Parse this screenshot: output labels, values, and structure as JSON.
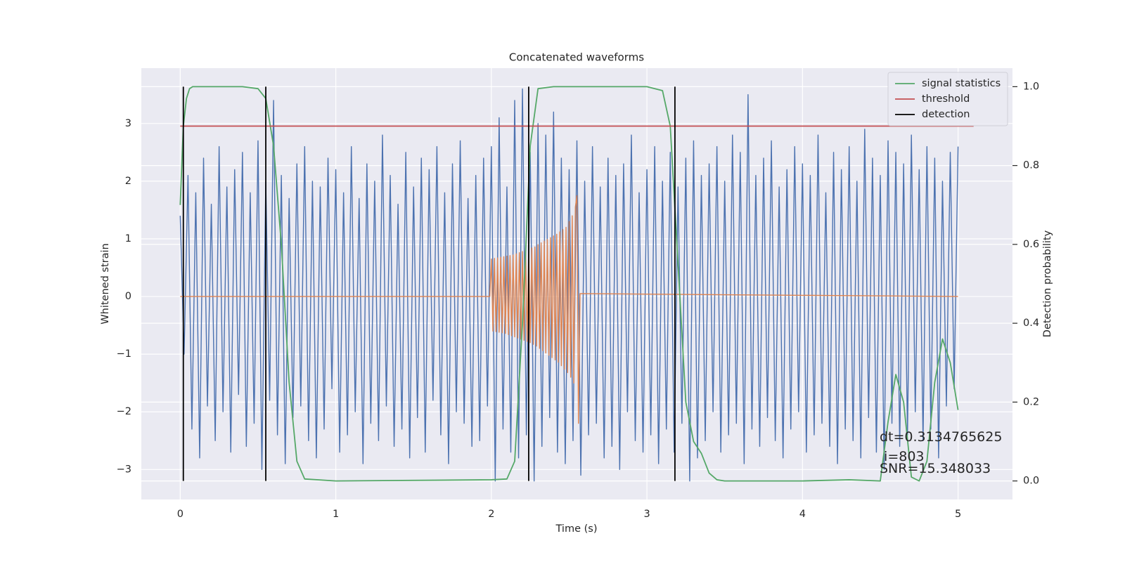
{
  "chart_data": {
    "type": "line",
    "title": "Concatenated waveforms",
    "xlabel": "Time (s)",
    "ylabel": "Whitened strain",
    "y2label": "Detection probability",
    "xlim": [
      -0.25,
      5.35
    ],
    "ylim": [
      -3.52,
      3.96
    ],
    "y2lim": [
      -0.047,
      1.047
    ],
    "xticks": [
      0,
      1,
      2,
      3,
      4,
      5
    ],
    "yticks": [
      {
        "value": -3,
        "label": "−3"
      },
      {
        "value": -2,
        "label": "−2"
      },
      {
        "value": -1,
        "label": "−1"
      },
      0,
      1,
      2,
      3
    ],
    "y2ticks": [
      {
        "value": 0,
        "label": "0.0"
      },
      {
        "value": 0.2,
        "label": "0.2"
      },
      {
        "value": 0.4,
        "label": "0.4"
      },
      {
        "value": 0.6,
        "label": "0.6"
      },
      {
        "value": 0.8,
        "label": "0.8"
      },
      {
        "value": 1,
        "label": "1.0"
      }
    ],
    "grid": true,
    "legend": "upper right",
    "annotations": [
      "dt=0.3134765625",
      " i=803",
      "SNR=15.348033"
    ],
    "series": [
      {
        "color": "#4c72b0",
        "x": [
          0,
          0.025,
          0.05,
          0.075,
          0.1,
          0.125,
          0.15,
          0.175,
          0.2,
          0.225,
          0.25,
          0.275,
          0.3,
          0.325,
          0.35,
          0.375,
          0.4,
          0.425,
          0.45,
          0.475,
          0.5,
          0.525,
          0.55,
          0.575,
          0.6,
          0.625,
          0.65,
          0.675,
          0.7,
          0.725,
          0.75,
          0.775,
          0.8,
          0.825,
          0.85,
          0.875,
          0.9,
          0.925,
          0.95,
          0.975,
          1,
          1.025,
          1.05,
          1.075,
          1.1,
          1.125,
          1.15,
          1.175,
          1.2,
          1.225,
          1.25,
          1.275,
          1.3,
          1.325,
          1.35,
          1.375,
          1.4,
          1.425,
          1.45,
          1.475,
          1.5,
          1.525,
          1.55,
          1.575,
          1.6,
          1.625,
          1.65,
          1.675,
          1.7,
          1.725,
          1.75,
          1.775,
          1.8,
          1.825,
          1.85,
          1.875,
          1.9,
          1.925,
          1.95,
          1.975,
          2,
          2.025,
          2.05,
          2.075,
          2.1,
          2.125,
          2.15,
          2.175,
          2.2,
          2.225,
          2.25,
          2.275,
          2.3,
          2.325,
          2.35,
          2.375,
          2.4,
          2.425,
          2.45,
          2.475,
          2.5,
          2.525,
          2.55,
          2.575,
          2.6,
          2.625,
          2.65,
          2.675,
          2.7,
          2.725,
          2.75,
          2.775,
          2.8,
          2.825,
          2.85,
          2.875,
          2.9,
          2.925,
          2.95,
          2.975,
          3,
          3.025,
          3.05,
          3.075,
          3.1,
          3.125,
          3.15,
          3.175,
          3.2,
          3.225,
          3.25,
          3.275,
          3.3,
          3.325,
          3.35,
          3.375,
          3.4,
          3.425,
          3.45,
          3.475,
          3.5,
          3.525,
          3.55,
          3.575,
          3.6,
          3.625,
          3.65,
          3.675,
          3.7,
          3.725,
          3.75,
          3.775,
          3.8,
          3.825,
          3.85,
          3.875,
          3.9,
          3.925,
          3.95,
          3.975,
          4,
          4.025,
          4.05,
          4.075,
          4.1,
          4.125,
          4.15,
          4.175,
          4.2,
          4.225,
          4.25,
          4.275,
          4.3,
          4.325,
          4.35,
          4.375,
          4.4,
          4.425,
          4.45,
          4.475,
          4.5,
          4.525,
          4.55,
          4.575,
          4.6,
          4.625,
          4.65,
          4.675,
          4.7,
          4.725,
          4.75,
          4.775,
          4.8,
          4.825,
          4.85,
          4.875,
          4.9,
          4.925,
          4.95,
          4.975,
          5
        ],
        "values": [
          1.4,
          -1.0,
          2.1,
          -2.3,
          1.8,
          -2.8,
          2.4,
          -1.9,
          1.6,
          -2.5,
          2.6,
          -2.0,
          1.9,
          -2.7,
          2.2,
          -1.7,
          2.5,
          -2.6,
          1.8,
          -2.2,
          2.7,
          -3.0,
          2.0,
          -1.8,
          3.4,
          -2.4,
          2.1,
          -2.9,
          1.7,
          -2.1,
          2.3,
          -1.9,
          2.6,
          -2.5,
          2.0,
          -2.8,
          1.9,
          -2.3,
          2.4,
          -1.6,
          2.2,
          -2.7,
          1.8,
          -2.4,
          2.6,
          -2.0,
          1.7,
          -2.9,
          2.3,
          -2.2,
          2.0,
          -2.5,
          2.8,
          -1.9,
          2.1,
          -2.6,
          1.6,
          -2.3,
          2.5,
          -2.8,
          1.9,
          -2.1,
          2.4,
          -2.7,
          2.2,
          -1.8,
          2.6,
          -2.4,
          1.8,
          -2.9,
          2.3,
          -2.0,
          2.7,
          -2.2,
          1.7,
          -2.6,
          2.1,
          -2.5,
          2.4,
          -1.9,
          2.6,
          -3.2,
          3.1,
          -2.3,
          1.9,
          -2.7,
          3.4,
          -2.8,
          3.6,
          -2.4,
          2.5,
          -3.2,
          3.0,
          -2.6,
          2.8,
          -2.1,
          3.2,
          -2.7,
          2.4,
          -2.9,
          2.2,
          -2.5,
          2.7,
          -3.1,
          2.0,
          -2.4,
          2.6,
          -2.2,
          1.9,
          -2.8,
          2.4,
          -2.6,
          2.1,
          -3.0,
          2.3,
          -2.0,
          2.8,
          -2.5,
          1.8,
          -2.7,
          2.2,
          -2.4,
          2.6,
          -2.9,
          2.0,
          -2.3,
          2.5,
          -2.7,
          1.9,
          -2.2,
          2.4,
          -3.2,
          2.7,
          -2.8,
          2.1,
          -2.5,
          2.3,
          -2.0,
          2.6,
          -2.7,
          2.0,
          -2.4,
          2.8,
          -2.2,
          2.5,
          -2.9,
          3.5,
          -2.3,
          2.1,
          -2.6,
          2.4,
          -2.1,
          2.7,
          -2.5,
          1.9,
          -2.8,
          2.2,
          -2.3,
          2.6,
          -2.0,
          2.3,
          -2.7,
          2.1,
          -2.4,
          2.8,
          -2.2,
          1.8,
          -2.6,
          2.5,
          -2.9,
          2.2,
          -2.3,
          2.6,
          -2.5,
          2.0,
          -2.8,
          2.9,
          -2.1,
          2.4,
          -2.7,
          2.1,
          -3.0,
          2.7,
          -2.2,
          2.5,
          -2.6,
          2.3,
          -2.4,
          2.8,
          -2.0,
          2.2,
          -2.5,
          2.6,
          -2.3,
          2.4,
          -2.8,
          2.0,
          -1.9,
          2.5,
          -1.6,
          2.6
        ]
      },
      {
        "color": "#dd8452",
        "x": [
          0,
          1.99,
          2,
          2.01,
          2.02,
          2.03,
          2.04,
          2.05,
          2.06,
          2.07,
          2.08,
          2.09,
          2.1,
          2.11,
          2.12,
          2.13,
          2.14,
          2.15,
          2.16,
          2.17,
          2.18,
          2.19,
          2.2,
          2.21,
          2.22,
          2.23,
          2.24,
          2.25,
          2.26,
          2.27,
          2.28,
          2.29,
          2.3,
          2.31,
          2.32,
          2.33,
          2.34,
          2.35,
          2.36,
          2.37,
          2.38,
          2.39,
          2.4,
          2.41,
          2.42,
          2.43,
          2.44,
          2.45,
          2.46,
          2.47,
          2.48,
          2.49,
          2.5,
          2.51,
          2.52,
          2.53,
          2.54,
          2.55,
          2.56,
          2.57,
          5
        ],
        "values": [
          0,
          0,
          0.65,
          -0.6,
          0.66,
          -0.61,
          0.67,
          -0.62,
          0.68,
          -0.63,
          0.69,
          -0.64,
          0.7,
          -0.66,
          0.71,
          -0.68,
          0.72,
          -0.7,
          0.74,
          -0.72,
          0.76,
          -0.74,
          0.78,
          -0.76,
          0.8,
          -0.78,
          0.82,
          -0.8,
          0.84,
          -0.83,
          0.86,
          -0.86,
          0.9,
          -0.9,
          0.93,
          -0.94,
          0.96,
          -0.98,
          0.99,
          -1.02,
          1.02,
          -1.06,
          1.05,
          -1.1,
          1.08,
          -1.14,
          1.12,
          -1.2,
          1.16,
          -1.26,
          1.2,
          -1.32,
          1.3,
          -1.4,
          1.4,
          -1.5,
          1.55,
          1.75,
          -2.2,
          0.05,
          0
        ]
      },
      {
        "name": "signal statistics",
        "color": "#55a868",
        "axis": "y2",
        "x": [
          0,
          0.02,
          0.04,
          0.06,
          0.08,
          0.1,
          0.4,
          0.5,
          0.55,
          0.6,
          0.65,
          0.7,
          0.75,
          0.8,
          1,
          2,
          2.1,
          2.15,
          2.2,
          2.25,
          2.3,
          2.4,
          3,
          3.1,
          3.15,
          3.2,
          3.25,
          3.3,
          3.35,
          3.4,
          3.45,
          3.5,
          4,
          4.3,
          4.5,
          4.55,
          4.6,
          4.65,
          4.7,
          4.75,
          4.8,
          4.85,
          4.9,
          4.95,
          5
        ],
        "values": [
          0.7,
          0.9,
          0.97,
          0.995,
          1,
          1,
          1,
          0.995,
          0.97,
          0.85,
          0.6,
          0.25,
          0.05,
          0.005,
          0,
          0.003,
          0.005,
          0.05,
          0.4,
          0.85,
          0.995,
          1,
          1,
          0.99,
          0.9,
          0.55,
          0.2,
          0.1,
          0.07,
          0.02,
          0.003,
          0,
          0,
          0.003,
          0,
          0.15,
          0.27,
          0.2,
          0.01,
          0,
          0.05,
          0.25,
          0.36,
          0.3,
          0.18
        ]
      },
      {
        "name": "threshold",
        "color": "#c44e52",
        "axis": "y2",
        "x": [
          0,
          5.1
        ],
        "values": [
          0.9,
          0.9
        ]
      },
      {
        "name": "detection",
        "color": "#000000",
        "axis": "y2",
        "kind": "vline",
        "x": [
          0.02,
          0.55,
          2.24,
          3.18
        ],
        "span": [
          0,
          1
        ]
      }
    ]
  }
}
